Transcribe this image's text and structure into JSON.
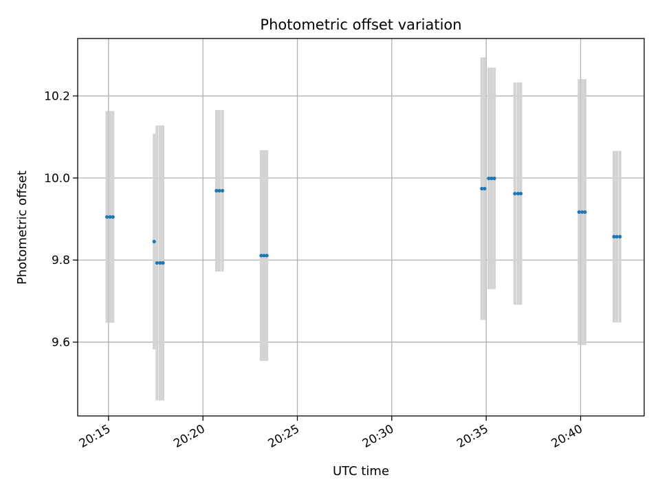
{
  "chart_data": {
    "type": "scatter",
    "title": "Photometric offset variation",
    "xlabel": "UTC time",
    "ylabel": "Photometric offset",
    "x_ticks": [
      "20:15",
      "20:20",
      "20:25",
      "20:30",
      "20:35",
      "20:40"
    ],
    "y_ticks": [
      "9.6",
      "9.8",
      "10.0",
      "10.2"
    ],
    "xlim": [
      "20:13:22",
      "20:43:22"
    ],
    "ylim": [
      9.42,
      10.34
    ],
    "grid": true,
    "colors": {
      "points": "#1f77b4",
      "errorbars": "#d3d3d3",
      "grid": "#b0b0b0"
    },
    "series": [
      {
        "x": [
          "20:14:55",
          "20:15:05",
          "20:15:14",
          "20:17:25",
          "20:17:34",
          "20:17:44",
          "20:17:53",
          "20:20:43",
          "20:20:52",
          "20:21:02",
          "20:23:05",
          "20:23:14",
          "20:23:23",
          "20:34:46",
          "20:34:55",
          "20:35:08",
          "20:35:17",
          "20:35:26",
          "20:36:31",
          "20:36:41",
          "20:36:50",
          "20:39:55",
          "20:40:05",
          "20:40:14",
          "20:41:46",
          "20:41:55",
          "20:42:05"
        ],
        "y": [
          9.905,
          9.905,
          9.905,
          9.845,
          9.793,
          9.793,
          9.793,
          9.969,
          9.969,
          9.969,
          9.811,
          9.811,
          9.811,
          9.974,
          9.974,
          9.999,
          9.999,
          9.999,
          9.962,
          9.962,
          9.962,
          9.917,
          9.917,
          9.917,
          9.857,
          9.857,
          9.857
        ],
        "yerr": [
          0.258,
          0.258,
          0.258,
          0.263,
          0.335,
          0.335,
          0.335,
          0.197,
          0.197,
          0.197,
          0.257,
          0.257,
          0.257,
          0.32,
          0.32,
          0.27,
          0.27,
          0.27,
          0.271,
          0.271,
          0.271,
          0.324,
          0.324,
          0.324,
          0.209,
          0.209,
          0.209
        ]
      }
    ]
  }
}
